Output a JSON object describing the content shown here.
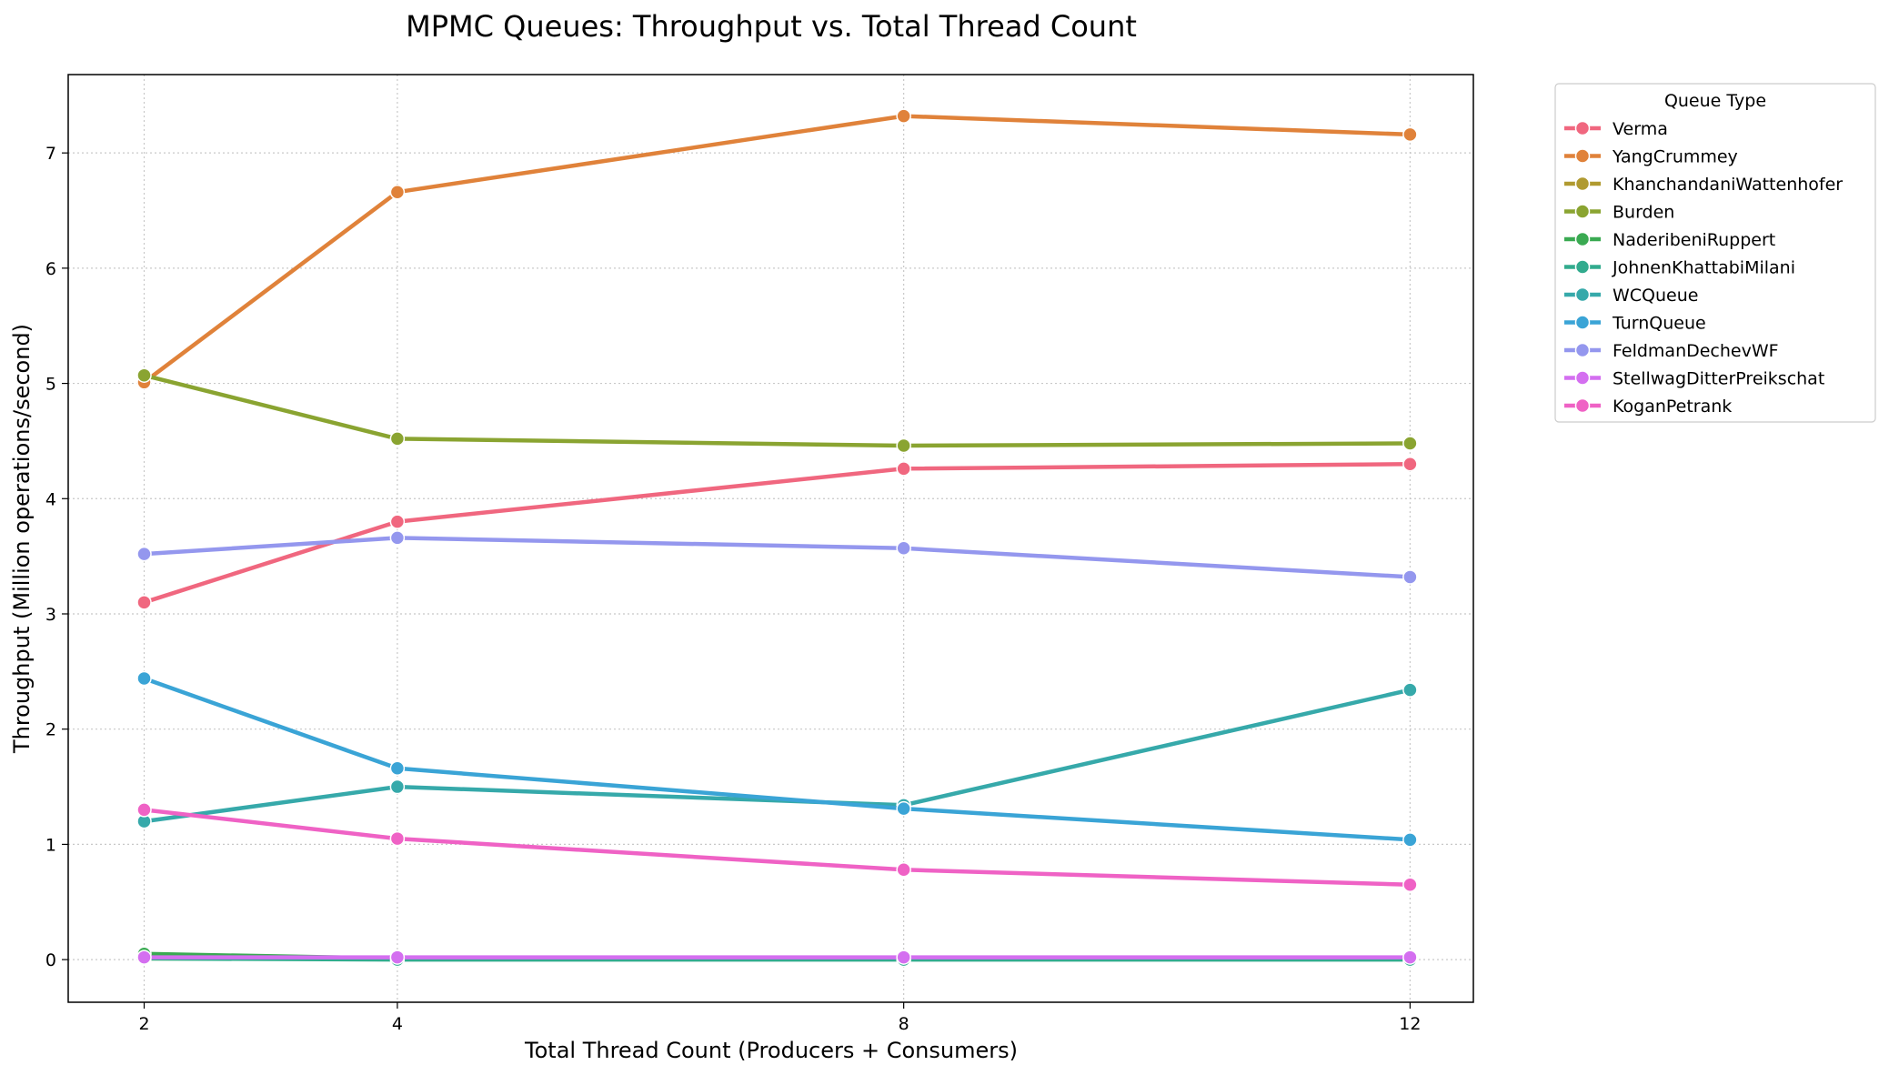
{
  "chart_data": {
    "type": "line",
    "title": "MPMC Queues: Throughput vs. Total Thread Count",
    "xlabel": "Total Thread Count (Producers + Consumers)",
    "ylabel": "Throughput (Million operations/second)",
    "x": [
      2,
      4,
      8,
      12
    ],
    "x_tick_labels": [
      "2",
      "4",
      "8",
      "12"
    ],
    "xlim": [
      1.4,
      12.5
    ],
    "ylim": [
      -0.37,
      7.68
    ],
    "y_ticks": [
      0,
      1,
      2,
      3,
      4,
      5,
      6,
      7
    ],
    "y_tick_labels": [
      "0",
      "1",
      "2",
      "3",
      "4",
      "5",
      "6",
      "7"
    ],
    "grid": true,
    "legend_title": "Queue Type",
    "legend_placement": "outside upper right",
    "series": [
      {
        "name": "Verma",
        "color": "#f0677f",
        "values": [
          3.1,
          3.8,
          4.26,
          4.3
        ]
      },
      {
        "name": "YangCrummey",
        "color": "#e0823a",
        "values": [
          5.01,
          6.66,
          7.32,
          7.16
        ]
      },
      {
        "name": "KhanchandaniWattenhofer",
        "color": "#b09a30",
        "values": [
          0.01,
          0.01,
          0.01,
          0.01
        ]
      },
      {
        "name": "Burden",
        "color": "#8aa431",
        "values": [
          5.07,
          4.52,
          4.46,
          4.48
        ]
      },
      {
        "name": "NaderibeniRuppert",
        "color": "#3aaa52",
        "values": [
          0.05,
          0.01,
          0.01,
          0.01
        ]
      },
      {
        "name": "JohnenKhattabiMilani",
        "color": "#32ab8e",
        "values": [
          0.01,
          0.0,
          0.0,
          0.0
        ]
      },
      {
        "name": "WCQueue",
        "color": "#36a9aa",
        "values": [
          1.2,
          1.5,
          1.34,
          2.34
        ]
      },
      {
        "name": "TurnQueue",
        "color": "#3aa4d6",
        "values": [
          2.44,
          1.66,
          1.31,
          1.04
        ]
      },
      {
        "name": "FeldmanDechevWF",
        "color": "#9497ee",
        "values": [
          3.52,
          3.66,
          3.57,
          3.32
        ]
      },
      {
        "name": "StellwagDitterPreikschat",
        "color": "#d46ff0",
        "values": [
          0.02,
          0.02,
          0.02,
          0.02
        ]
      },
      {
        "name": "KoganPetrank",
        "color": "#ef62c5",
        "values": [
          1.3,
          1.05,
          0.78,
          0.65
        ]
      }
    ]
  }
}
